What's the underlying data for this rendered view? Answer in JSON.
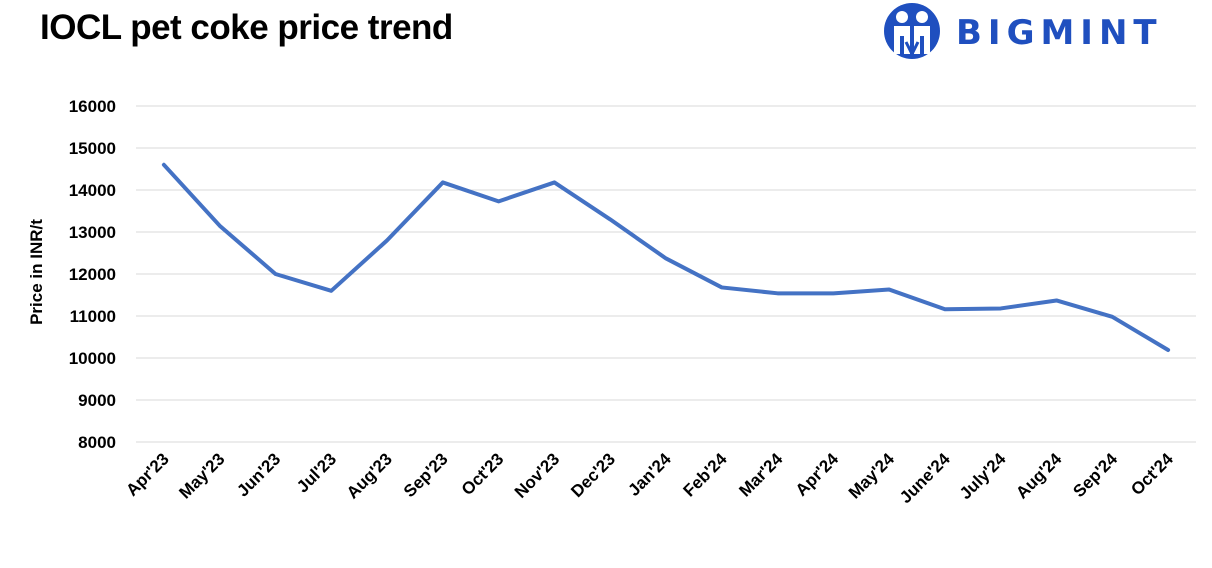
{
  "header": {
    "title": "IOCL pet coke price trend"
  },
  "logo": {
    "text": "BIGMINT",
    "color": "#1f4fbf",
    "icon": "bigmint-people-icon"
  },
  "chart_data": {
    "type": "line",
    "title": "IOCL pet coke price trend",
    "xlabel": "",
    "ylabel": "Price in INR/t",
    "ylim": [
      8000,
      16000
    ],
    "yticks": [
      8000,
      9000,
      10000,
      11000,
      12000,
      13000,
      14000,
      15000,
      16000
    ],
    "grid": true,
    "legend": "none",
    "line_color": "#4472c4",
    "categories": [
      "Apr'23",
      "May'23",
      "Jun'23",
      "Jul'23",
      "Aug'23",
      "Sep'23",
      "Oct'23",
      "Nov'23",
      "Dec'23",
      "Jan'24",
      "Feb'24",
      "Mar'24",
      "Apr'24",
      "May'24",
      "June'24",
      "July'24",
      "Aug'24",
      "Sep'24",
      "Oct'24"
    ],
    "series": [
      {
        "values": [
          14600,
          13150,
          12000,
          11600,
          12800,
          14180,
          13730,
          14180,
          13300,
          12370,
          11680,
          11540,
          11540,
          11630,
          11160,
          11180,
          11370,
          10980,
          10190
        ]
      }
    ]
  }
}
